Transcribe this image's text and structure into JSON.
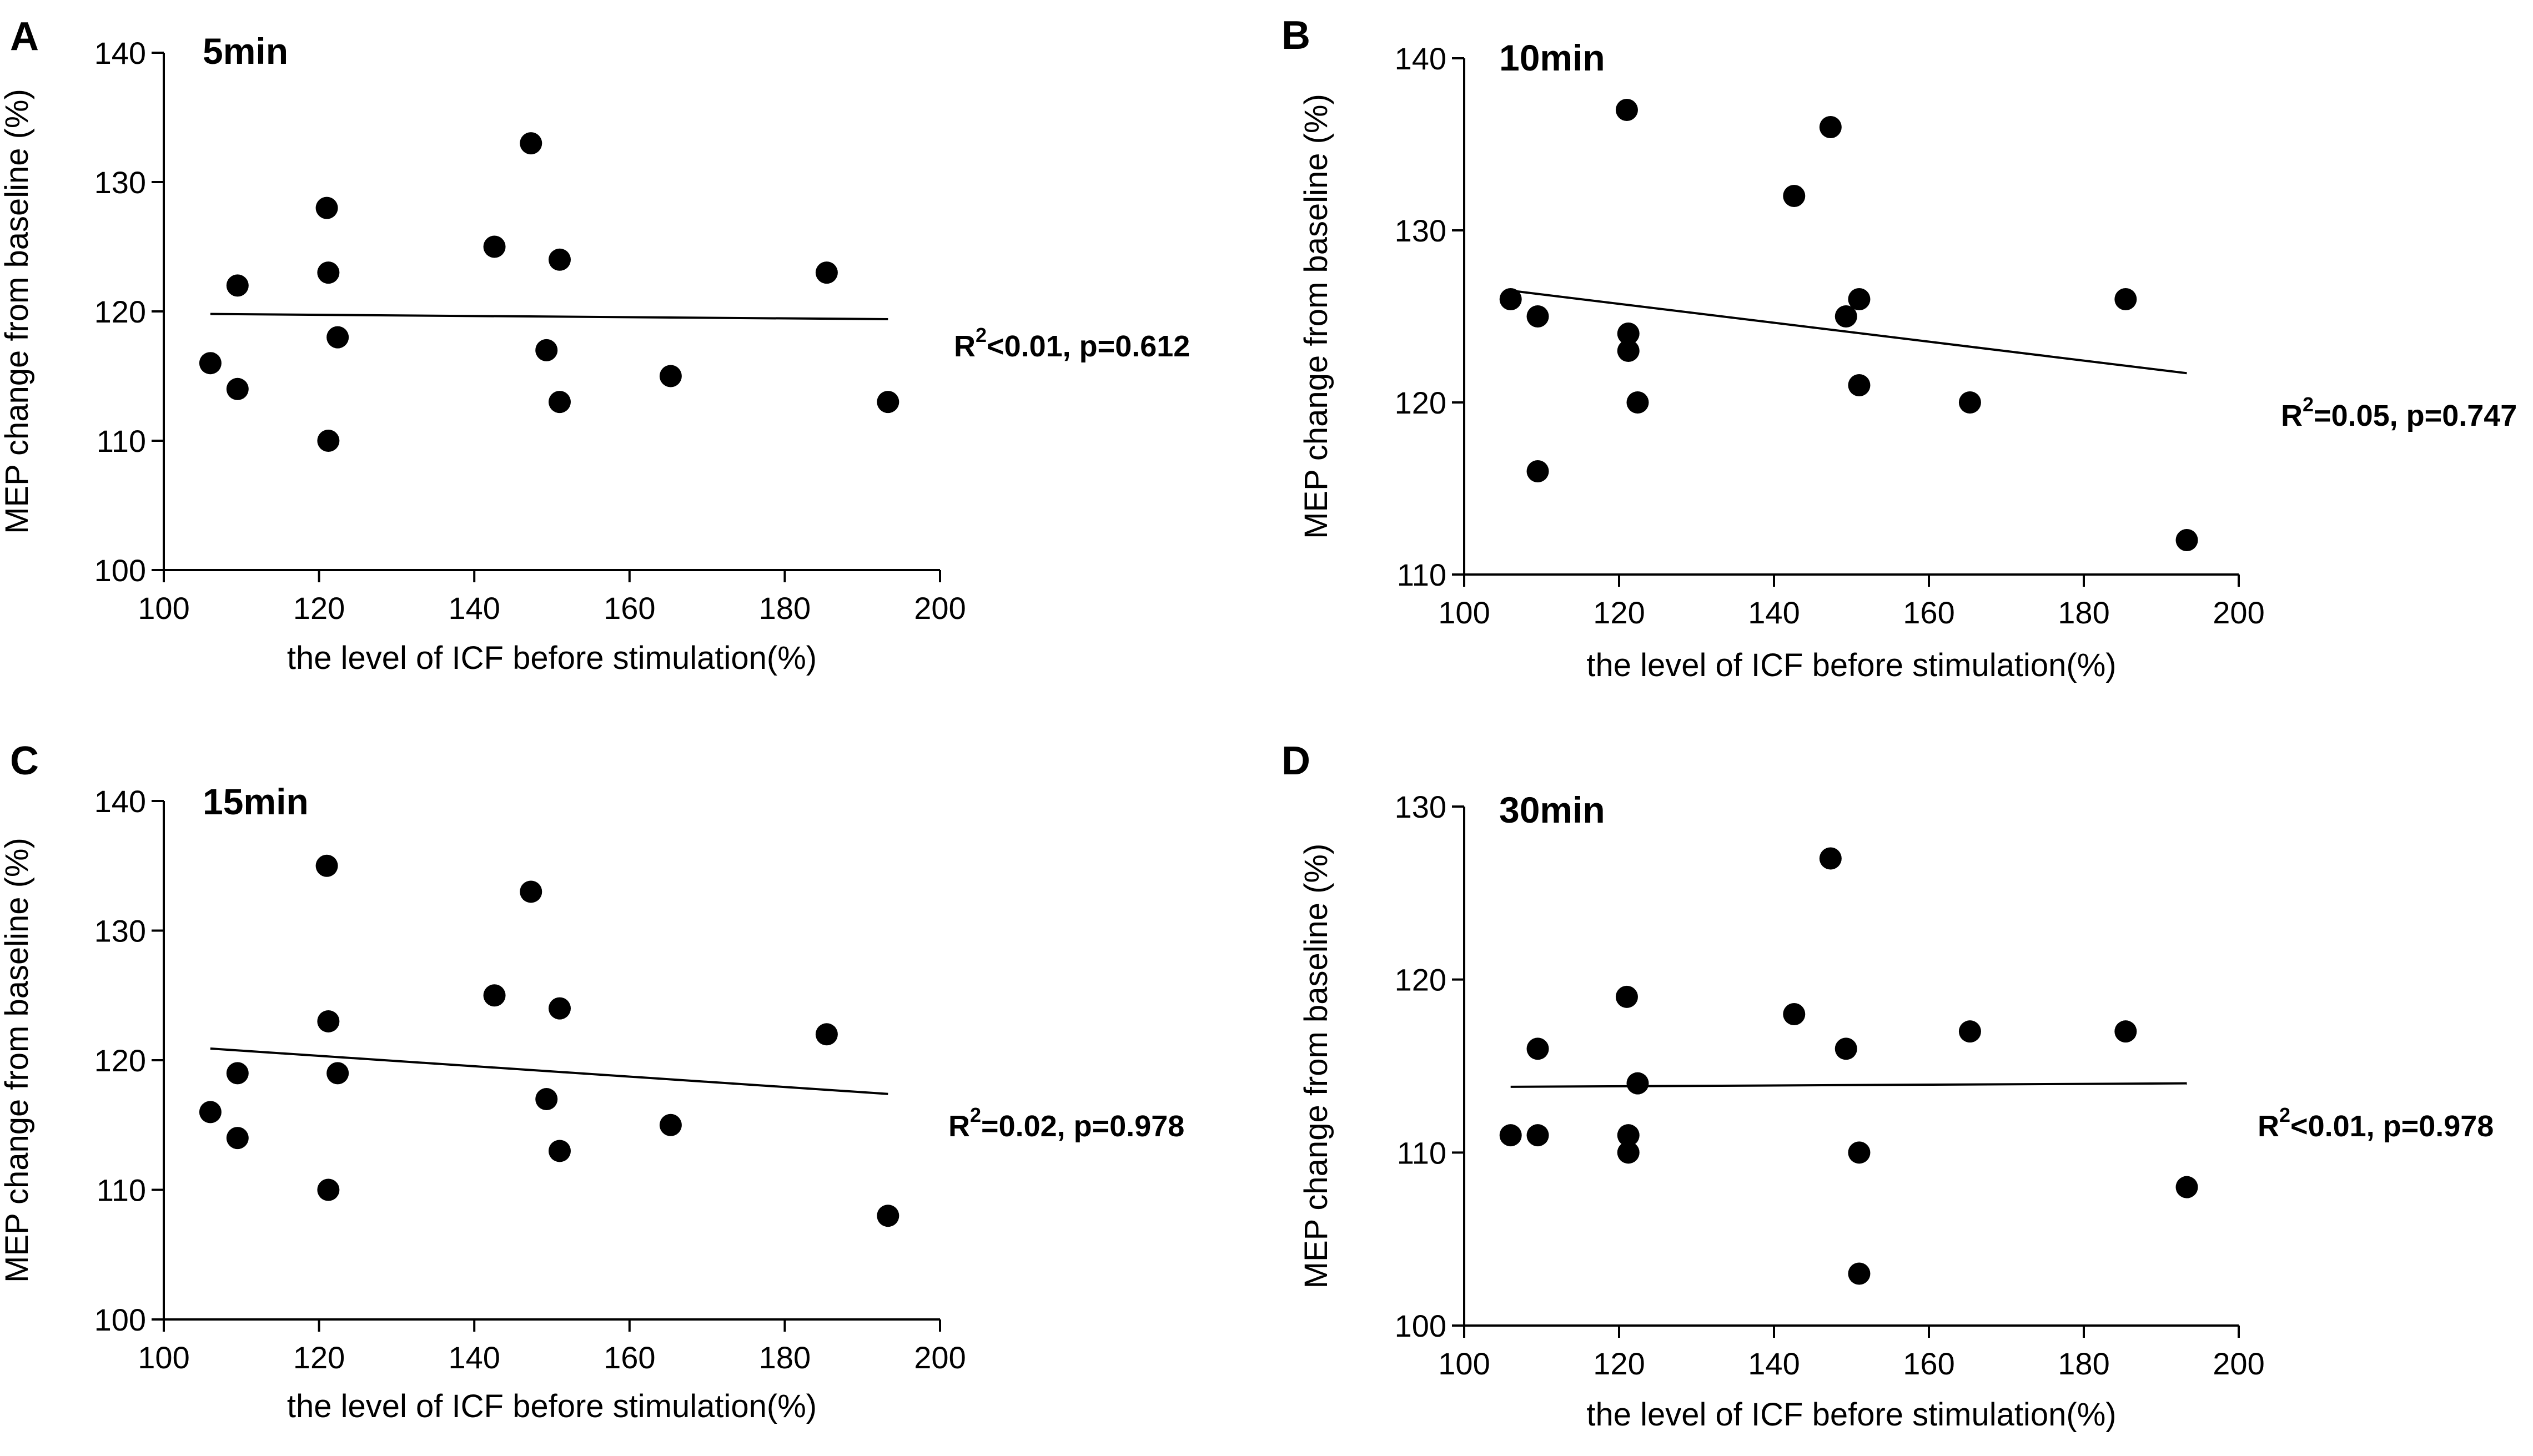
{
  "figure": {
    "panels_count": 4
  },
  "chart_data": [
    {
      "panel_label": "A",
      "type": "scatter",
      "title": "5min",
      "xlabel": "the level of ICF before stimulation(%)",
      "ylabel": "MEP change from baseline (%)",
      "xlim": [
        100,
        200
      ],
      "ylim": [
        100,
        140
      ],
      "xticks": [
        100,
        120,
        140,
        160,
        180,
        200
      ],
      "yticks": [
        100,
        110,
        120,
        130,
        140
      ],
      "points": [
        {
          "x": 106,
          "y": 116
        },
        {
          "x": 109.5,
          "y": 122
        },
        {
          "x": 109.5,
          "y": 114
        },
        {
          "x": 121,
          "y": 128
        },
        {
          "x": 121.2,
          "y": 123
        },
        {
          "x": 121.2,
          "y": 110
        },
        {
          "x": 122.4,
          "y": 118
        },
        {
          "x": 142.6,
          "y": 125
        },
        {
          "x": 147.3,
          "y": 133
        },
        {
          "x": 149.3,
          "y": 117
        },
        {
          "x": 151,
          "y": 124
        },
        {
          "x": 151,
          "y": 113
        },
        {
          "x": 165.3,
          "y": 115
        },
        {
          "x": 185.4,
          "y": 123
        },
        {
          "x": 193.3,
          "y": 113
        }
      ],
      "fit_line": {
        "x": [
          106,
          193.3
        ],
        "y": [
          119.8,
          119.4
        ]
      },
      "stats": {
        "r2_prefix": "R",
        "r2_superscript": "2",
        "r2_value": "<0.01",
        "p": ", p=0.612"
      }
    },
    {
      "panel_label": "B",
      "type": "scatter",
      "title": "10min",
      "xlabel": "the level of ICF before stimulation(%)",
      "ylabel": "MEP change from baseline (%)",
      "xlim": [
        100,
        200
      ],
      "ylim": [
        110,
        140
      ],
      "xticks": [
        100,
        120,
        140,
        160,
        180,
        200
      ],
      "yticks": [
        110,
        120,
        130,
        140
      ],
      "points": [
        {
          "x": 106,
          "y": 126
        },
        {
          "x": 109.5,
          "y": 125
        },
        {
          "x": 109.5,
          "y": 116
        },
        {
          "x": 121,
          "y": 137
        },
        {
          "x": 121.2,
          "y": 124
        },
        {
          "x": 121.2,
          "y": 123
        },
        {
          "x": 122.4,
          "y": 120
        },
        {
          "x": 142.6,
          "y": 132
        },
        {
          "x": 147.3,
          "y": 136
        },
        {
          "x": 149.3,
          "y": 125
        },
        {
          "x": 151,
          "y": 126
        },
        {
          "x": 151,
          "y": 121
        },
        {
          "x": 165.3,
          "y": 120
        },
        {
          "x": 185.4,
          "y": 126
        },
        {
          "x": 193.3,
          "y": 112
        }
      ],
      "fit_line": {
        "x": [
          106,
          193.3
        ],
        "y": [
          126.5,
          121.7
        ]
      },
      "stats": {
        "r2_prefix": "R",
        "r2_superscript": "2",
        "r2_value": "=0.05",
        "p": ", p=0.747"
      }
    },
    {
      "panel_label": "C",
      "type": "scatter",
      "title": "15min",
      "xlabel": "the level of ICF before stimulation(%)",
      "ylabel": "MEP change from baseline (%)",
      "xlim": [
        100,
        200
      ],
      "ylim": [
        100,
        140
      ],
      "xticks": [
        100,
        120,
        140,
        160,
        180,
        200
      ],
      "yticks": [
        100,
        110,
        120,
        130,
        140
      ],
      "points": [
        {
          "x": 106,
          "y": 116
        },
        {
          "x": 109.5,
          "y": 119
        },
        {
          "x": 109.5,
          "y": 114
        },
        {
          "x": 121,
          "y": 135
        },
        {
          "x": 121.2,
          "y": 123
        },
        {
          "x": 121.2,
          "y": 110
        },
        {
          "x": 122.4,
          "y": 119
        },
        {
          "x": 142.6,
          "y": 125
        },
        {
          "x": 147.3,
          "y": 133
        },
        {
          "x": 149.3,
          "y": 117
        },
        {
          "x": 151,
          "y": 124
        },
        {
          "x": 151,
          "y": 113
        },
        {
          "x": 165.3,
          "y": 115
        },
        {
          "x": 185.4,
          "y": 122
        },
        {
          "x": 193.3,
          "y": 108
        }
      ],
      "fit_line": {
        "x": [
          106,
          193.3
        ],
        "y": [
          120.9,
          117.4
        ]
      },
      "stats": {
        "r2_prefix": "R",
        "r2_superscript": "2",
        "r2_value": "=0.02",
        "p": ", p=0.978"
      }
    },
    {
      "panel_label": "D",
      "type": "scatter",
      "title": "30min",
      "xlabel": "the level of ICF before stimulation(%)",
      "ylabel": "MEP change from baseline (%)",
      "xlim": [
        100,
        200
      ],
      "ylim": [
        100,
        130
      ],
      "xticks": [
        100,
        120,
        140,
        160,
        180,
        200
      ],
      "yticks": [
        100,
        110,
        120,
        130
      ],
      "points": [
        {
          "x": 106,
          "y": 111
        },
        {
          "x": 109.5,
          "y": 116
        },
        {
          "x": 109.5,
          "y": 111
        },
        {
          "x": 121,
          "y": 119
        },
        {
          "x": 121.2,
          "y": 111
        },
        {
          "x": 121.2,
          "y": 110
        },
        {
          "x": 122.4,
          "y": 114
        },
        {
          "x": 142.6,
          "y": 118
        },
        {
          "x": 147.3,
          "y": 127
        },
        {
          "x": 149.3,
          "y": 116
        },
        {
          "x": 151,
          "y": 110
        },
        {
          "x": 151,
          "y": 103
        },
        {
          "x": 165.3,
          "y": 117
        },
        {
          "x": 185.4,
          "y": 117
        },
        {
          "x": 193.3,
          "y": 108
        }
      ],
      "fit_line": {
        "x": [
          106,
          193.3
        ],
        "y": [
          113.8,
          114.0
        ]
      },
      "stats": {
        "r2_prefix": "R",
        "r2_superscript": "2",
        "r2_value": "<0.01",
        "p": ", p=0.978"
      }
    }
  ]
}
